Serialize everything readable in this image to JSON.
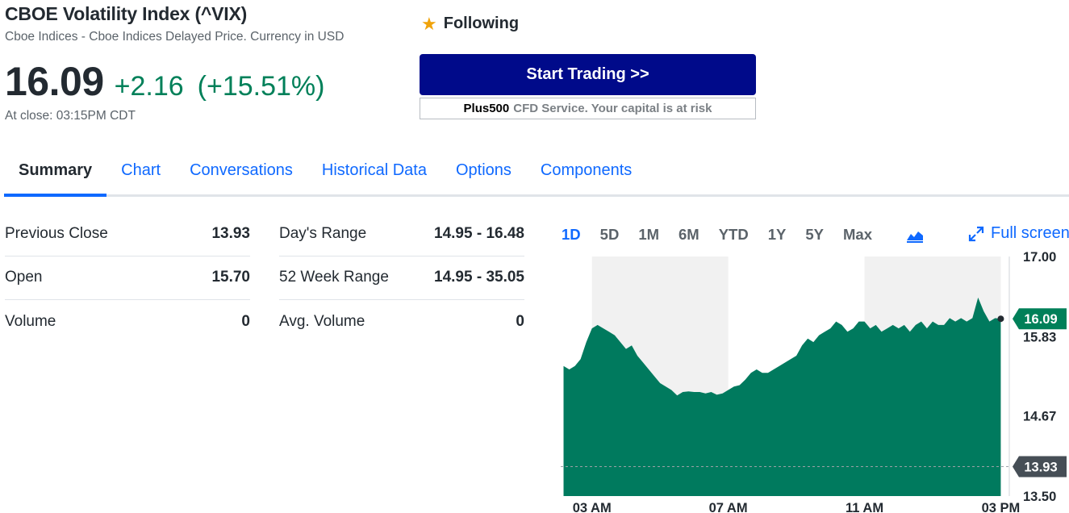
{
  "header": {
    "title": "CBOE Volatility Index (^VIX)",
    "subtitle": "Cboe Indices - Cboe Indices Delayed Price. Currency in USD",
    "price": "16.09",
    "change": "+2.16",
    "change_percent": "(+15.51%)",
    "close_time": "At close: 03:15PM CDT",
    "follow_label": "Following",
    "follow_icon": "star-icon"
  },
  "ad": {
    "button_label": "Start Trading >>",
    "brand": "Plus500",
    "note": "CFD Service. Your capital is at risk"
  },
  "tabs": [
    {
      "label": "Summary",
      "active": true
    },
    {
      "label": "Chart"
    },
    {
      "label": "Conversations"
    },
    {
      "label": "Historical Data"
    },
    {
      "label": "Options"
    },
    {
      "label": "Components"
    }
  ],
  "stats_left": [
    {
      "label": "Previous Close",
      "value": "13.93"
    },
    {
      "label": "Open",
      "value": "15.70"
    },
    {
      "label": "Volume",
      "value": "0"
    }
  ],
  "stats_right": [
    {
      "label": "Day's Range",
      "value": "14.95 - 16.48"
    },
    {
      "label": "52 Week Range",
      "value": "14.95 - 35.05"
    },
    {
      "label": "Avg. Volume",
      "value": "0"
    }
  ],
  "chart_controls": {
    "ranges": [
      "1D",
      "5D",
      "1M",
      "6M",
      "YTD",
      "1Y",
      "5Y",
      "Max"
    ],
    "active_range": "1D",
    "chart_type_icon": "mountain-chart-icon",
    "fullscreen_label": "Full screen",
    "fullscreen_icon": "expand-arrows-icon"
  },
  "colors": {
    "accent": "#0f69ff",
    "positive": "#008059",
    "area_fill": "#007a5e",
    "button": "#000a8a",
    "prev_close_tag": "#464e56"
  },
  "chart_data": {
    "type": "area",
    "title": "",
    "xlabel": "",
    "ylabel": "",
    "x_ticks": [
      "03 AM",
      "07 AM",
      "11 AM",
      "03 PM"
    ],
    "y_ticks": [
      "17.00",
      "15.83",
      "14.67",
      "13.50"
    ],
    "ylim": [
      13.5,
      17.0
    ],
    "current_value": "16.09",
    "previous_close": "13.93",
    "grid": false,
    "shaded_bands": [
      [
        "03 AM",
        "07 AM"
      ],
      [
        "11 AM",
        "03 PM"
      ]
    ],
    "series": [
      {
        "x": [
          "02:10",
          "02:20",
          "02:30",
          "02:40",
          "02:50",
          "03:00",
          "03:10",
          "03:20",
          "03:30",
          "03:40",
          "03:50",
          "04:00",
          "04:10",
          "04:20",
          "04:30",
          "04:40",
          "04:50",
          "05:00",
          "05:10",
          "05:20",
          "05:30",
          "05:40",
          "05:50",
          "06:00",
          "06:10",
          "06:20",
          "06:30",
          "06:40",
          "06:50",
          "07:00",
          "07:10",
          "07:20",
          "07:30",
          "07:40",
          "07:50",
          "08:00",
          "08:10",
          "08:20",
          "08:30",
          "08:40",
          "08:50",
          "09:00",
          "09:10",
          "09:20",
          "09:30",
          "09:40",
          "09:50",
          "10:00",
          "10:10",
          "10:20",
          "10:30",
          "10:40",
          "10:50",
          "11:00",
          "11:10",
          "11:20",
          "11:30",
          "11:40",
          "11:50",
          "12:00",
          "12:10",
          "12:20",
          "12:30",
          "12:40",
          "12:50",
          "13:00",
          "13:10",
          "13:20",
          "13:30",
          "13:40",
          "13:50",
          "14:00",
          "14:10",
          "14:20",
          "14:30",
          "14:40",
          "14:50",
          "15:00"
        ],
        "y": [
          15.4,
          15.35,
          15.4,
          15.5,
          15.75,
          15.95,
          16.0,
          15.95,
          15.9,
          15.85,
          15.75,
          15.65,
          15.7,
          15.55,
          15.45,
          15.35,
          15.25,
          15.15,
          15.1,
          15.05,
          14.97,
          15.02,
          15.03,
          15.02,
          15.02,
          15.0,
          15.02,
          14.98,
          15.0,
          15.05,
          15.1,
          15.12,
          15.2,
          15.3,
          15.35,
          15.3,
          15.3,
          15.35,
          15.4,
          15.45,
          15.5,
          15.55,
          15.7,
          15.8,
          15.75,
          15.85,
          15.9,
          15.95,
          16.05,
          16.0,
          15.9,
          15.95,
          16.05,
          16.05,
          15.95,
          16.0,
          15.9,
          15.95,
          16.0,
          15.95,
          16.0,
          15.9,
          16.0,
          16.05,
          15.95,
          16.05,
          16.0,
          16.0,
          16.1,
          16.05,
          16.1,
          16.05,
          16.1,
          16.4,
          16.2,
          16.05,
          16.1,
          16.09
        ]
      }
    ]
  }
}
